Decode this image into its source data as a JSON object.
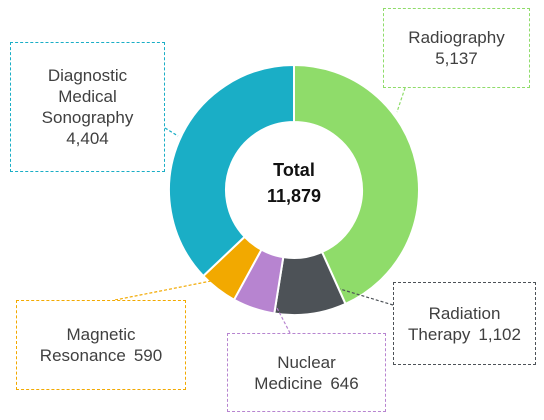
{
  "chart_data": {
    "type": "donut",
    "categories": [
      "Radiography",
      "Radiation Therapy",
      "Nuclear Medicine",
      "Magnetic Resonance",
      "Diagnostic Medical Sonography"
    ],
    "values": [
      5137,
      1102,
      646,
      590,
      4404
    ],
    "value_labels": [
      "5,137",
      "1,102",
      "646",
      "590",
      "4,404"
    ],
    "colors": [
      "#8fdc6a",
      "#4d5257",
      "#b784d0",
      "#f2a900",
      "#1aaec6"
    ],
    "center_title": "Total",
    "total": {
      "value": 11879,
      "label": "11,879"
    }
  }
}
